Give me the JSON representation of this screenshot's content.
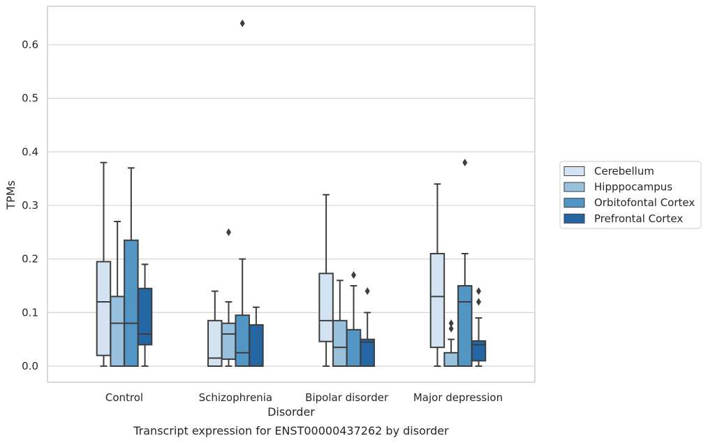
{
  "chart_data": {
    "type": "boxplot",
    "title": "Transcript expression for ENST00000437262 by disorder",
    "xlabel": "Disorder",
    "ylabel": "TPMs",
    "ylim": [
      -0.032,
      0.675
    ],
    "yticks": [
      "0.0",
      "0.1",
      "0.2",
      "0.3",
      "0.4",
      "0.5",
      "0.6"
    ],
    "categories": [
      "Control",
      "Schizophrenia",
      "Bipolar disorder",
      "Major depression"
    ],
    "grid": "horizontal",
    "legend_position": "right",
    "series": [
      {
        "name": "Cerebellum",
        "color": "#d4e3f2",
        "boxes": [
          {
            "min": 0.0,
            "q1": 0.02,
            "median": 0.12,
            "q3": 0.195,
            "max": 0.38,
            "outliers": []
          },
          {
            "min": 0.0,
            "q1": 0.0,
            "median": 0.015,
            "q3": 0.085,
            "max": 0.14,
            "outliers": []
          },
          {
            "min": 0.0,
            "q1": 0.046,
            "median": 0.085,
            "q3": 0.173,
            "max": 0.32,
            "outliers": []
          },
          {
            "min": 0.0,
            "q1": 0.035,
            "median": 0.13,
            "q3": 0.21,
            "max": 0.34,
            "outliers": []
          }
        ]
      },
      {
        "name": "Hipppocampus",
        "color": "#97c1dc",
        "boxes": [
          {
            "min": 0.0,
            "q1": 0.0,
            "median": 0.08,
            "q3": 0.13,
            "max": 0.27,
            "outliers": []
          },
          {
            "min": 0.0,
            "q1": 0.013,
            "median": 0.06,
            "q3": 0.08,
            "max": 0.12,
            "outliers": [
              0.25
            ]
          },
          {
            "min": 0.0,
            "q1": 0.0,
            "median": 0.035,
            "q3": 0.085,
            "max": 0.16,
            "outliers": []
          },
          {
            "min": 0.0,
            "q1": 0.0,
            "median": 0.0,
            "q3": 0.025,
            "max": 0.05,
            "outliers": [
              0.07,
              0.08
            ]
          }
        ]
      },
      {
        "name": "Orbitofontal Cortex",
        "color": "#5196c5",
        "boxes": [
          {
            "min": 0.0,
            "q1": 0.0,
            "median": 0.08,
            "q3": 0.235,
            "max": 0.37,
            "outliers": []
          },
          {
            "min": 0.0,
            "q1": 0.0,
            "median": 0.025,
            "q3": 0.095,
            "max": 0.2,
            "outliers": [
              0.64
            ]
          },
          {
            "min": 0.0,
            "q1": 0.0,
            "median": 0.0,
            "q3": 0.068,
            "max": 0.15,
            "outliers": [
              0.17
            ]
          },
          {
            "min": 0.0,
            "q1": 0.0,
            "median": 0.12,
            "q3": 0.15,
            "max": 0.21,
            "outliers": [
              0.38
            ]
          }
        ]
      },
      {
        "name": "Prefrontal Cortex",
        "color": "#2465a3",
        "boxes": [
          {
            "min": 0.0,
            "q1": 0.04,
            "median": 0.06,
            "q3": 0.145,
            "max": 0.19,
            "outliers": []
          },
          {
            "min": 0.0,
            "q1": 0.0,
            "median": 0.0,
            "q3": 0.077,
            "max": 0.11,
            "outliers": []
          },
          {
            "min": 0.0,
            "q1": 0.0,
            "median": 0.045,
            "q3": 0.05,
            "max": 0.1,
            "outliers": [
              0.14
            ]
          },
          {
            "min": 0.0,
            "q1": 0.01,
            "median": 0.04,
            "q3": 0.047,
            "max": 0.09,
            "outliers": [
              0.12,
              0.14
            ]
          }
        ]
      }
    ]
  }
}
